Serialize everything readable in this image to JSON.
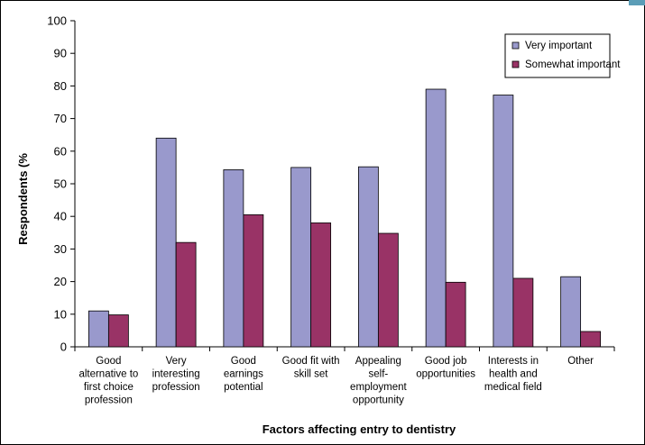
{
  "chart_data": {
    "type": "bar",
    "xlabel": "Factors affecting entry to dentistry",
    "ylabel": "Respondents (%",
    "ylim": [
      0,
      100
    ],
    "yticks": [
      0,
      10,
      20,
      30,
      40,
      50,
      60,
      70,
      80,
      90,
      100
    ],
    "grid": false,
    "legend_position": "top-right",
    "categories": [
      [
        "Good",
        "alternative to",
        "first choice",
        "profession"
      ],
      [
        "Very",
        "interesting",
        "profession"
      ],
      [
        "Good",
        "earnings",
        "potential"
      ],
      [
        "Good fit with",
        "skill set"
      ],
      [
        "Appealing",
        "self-",
        "employment",
        "opportunity"
      ],
      [
        "Good job",
        "opportunities"
      ],
      [
        "Interests in",
        "health and",
        "medical field"
      ],
      [
        "Other"
      ]
    ],
    "series": [
      {
        "name": "Very important",
        "color": "#9999cc",
        "values": [
          11,
          64,
          54.3,
          55,
          55.2,
          79,
          77.2,
          21.5
        ]
      },
      {
        "name": "Somewhat important",
        "color": "#993366",
        "values": [
          9.8,
          32,
          40.5,
          38,
          34.8,
          19.8,
          21,
          4.7
        ]
      }
    ]
  }
}
